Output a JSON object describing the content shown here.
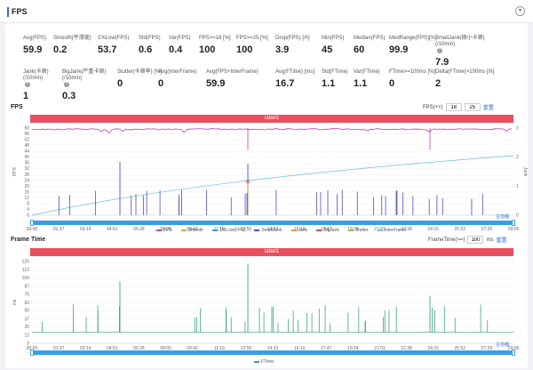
{
  "header": {
    "title": "FPS",
    "collapse_icon": "chevron-down-icon"
  },
  "metrics_row1": [
    {
      "label": "Avg(FPS)",
      "value": "59.9"
    },
    {
      "label": "Smooth(平滑度)",
      "value": "0.2"
    },
    {
      "label": "1%Low(FPS)",
      "value": "53.7"
    },
    {
      "label": "Std(FPS)",
      "value": "0.6"
    },
    {
      "label": "Var(FPS)",
      "value": "0.4"
    },
    {
      "label": "FPS>=18 [%]",
      "value": "100"
    },
    {
      "label": "FPS>=25 [%]",
      "value": "100"
    },
    {
      "label": "Drop(FPS) [/h]",
      "value": "3.9"
    },
    {
      "label": "Min(FPS)",
      "value": "45"
    },
    {
      "label": "Median(FPS)",
      "value": "60"
    },
    {
      "label": "MedRange(FPS)[%]",
      "value": "99.9"
    },
    {
      "label": "SmallJank(微小卡顿)",
      "label2": "(/10min)",
      "value": "7.9"
    }
  ],
  "metrics_row2": [
    {
      "label": "Jank(卡顿)",
      "label2": "(/10min)",
      "value": "1"
    },
    {
      "label": "BigJank(严重卡顿)",
      "label2": "(/10min)",
      "value": "0.3"
    },
    {
      "label": "Stutter(卡顿率) [%]",
      "value": "0"
    },
    {
      "label": "Avg(InterFrame)",
      "value": "0"
    },
    {
      "label": "Avg(FPS+InterFrame)",
      "value": "59.9"
    },
    {
      "label": "Avg(FTime) [ms]",
      "value": "16.7"
    },
    {
      "label": "Std(FTime)",
      "value": "1.1"
    },
    {
      "label": "Var(FTime)",
      "value": "1.1"
    },
    {
      "label": "FTime>=100ms [%]",
      "value": "0"
    },
    {
      "label": "Delta(FTime)>100ms [/h]",
      "value": "2"
    }
  ],
  "fps_section": {
    "title": "FPS",
    "control_label": "FPS(+×)",
    "input_a": "18",
    "input_b": "25",
    "reset": "重置",
    "label_bar": "label1",
    "y_axis_label": "FPS",
    "y2_axis_label": "Jank",
    "y_ticks": [
      "60",
      "56",
      "52",
      "48",
      "44",
      "40",
      "36",
      "32",
      "28",
      "24",
      "20",
      "16",
      "12",
      "8",
      "4",
      "0"
    ],
    "y2_ticks": [
      "3",
      "2",
      "1",
      "0"
    ],
    "x_ticks": [
      "00:00",
      "01:37",
      "03:14",
      "04:51",
      "06:28",
      "08:05",
      "09:42",
      "11:19",
      "12:56",
      "14:33",
      "16:10",
      "17:47",
      "19:24",
      "21:01",
      "22:38",
      "24:15",
      "25:52",
      "27:29",
      "29:06"
    ],
    "zoom_reset": "主动缩",
    "legend": [
      {
        "name": "FPS",
        "color": "#c03fb5"
      },
      {
        "name": "Smooth",
        "color": "#e9a23b"
      },
      {
        "name": "1%Low(FPS)",
        "color": "#3a9de8"
      },
      {
        "name": "SmallJank",
        "color": "#4a4fc2"
      },
      {
        "name": "Jank",
        "color": "#e69a3b"
      },
      {
        "name": "BigJank",
        "color": "#d94c4c"
      },
      {
        "name": "Stutter",
        "color": "#8fbf3a"
      },
      {
        "name": "InterFrame",
        "color": "#6cbfd8"
      }
    ]
  },
  "frametime_section": {
    "title": "Frame Time",
    "control_label": "FrameTime(>=)",
    "input_value": "100",
    "unit": "ms",
    "reset": "重置",
    "label_bar": "label1",
    "y_axis_label": "ms",
    "y_ticks": [
      "125",
      "112",
      "100",
      "87",
      "75",
      "62",
      "50",
      "37",
      "25",
      "12",
      "0"
    ],
    "x_ticks": [
      "00:00",
      "01:37",
      "03:14",
      "04:51",
      "06:28",
      "08:05",
      "09:42",
      "11:19",
      "12:56",
      "14:33",
      "16:10",
      "17:47",
      "19:24",
      "21:01",
      "22:38",
      "24:15",
      "25:52",
      "27:29",
      "29:06"
    ],
    "zoom_reset": "主动缩",
    "legend": [
      {
        "name": "FTime",
        "color": "#3aa87a"
      }
    ]
  },
  "colors": {
    "accent": "#2e6fd8",
    "label_bar": "#e94f5f",
    "scrollbar": "#3a9de8",
    "fps_line": "#c03fb5",
    "smalljank": "#4a4fc2",
    "interframe": "#6cbfd8",
    "ftime": "#3aa87a"
  }
}
